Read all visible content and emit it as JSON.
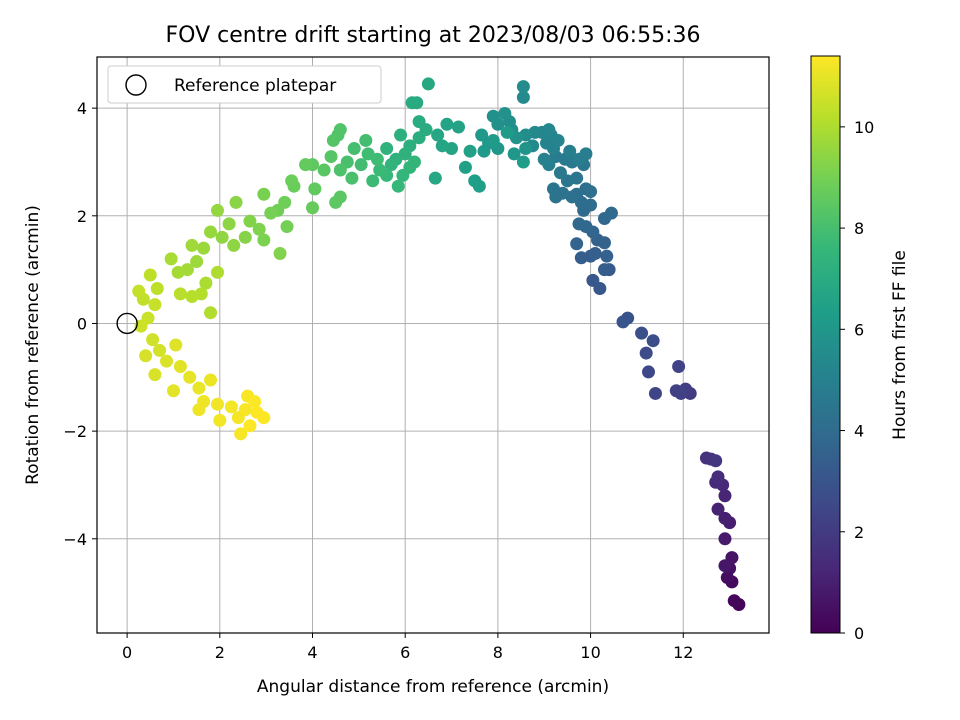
{
  "chart_data": {
    "type": "scatter",
    "title": "FOV centre drift starting at 2023/08/03 06:55:36",
    "xlabel": "Angular distance from reference (arcmin)",
    "ylabel": "Rotation from reference (arcmin)",
    "xlim": [
      -0.65,
      13.85
    ],
    "ylim": [
      -5.75,
      4.95
    ],
    "xticks": [
      0,
      2,
      4,
      6,
      8,
      10,
      12
    ],
    "yticks": [
      -4,
      -2,
      0,
      2,
      4
    ],
    "grid": true,
    "legend": {
      "placement": "top-left",
      "entries": [
        "Reference platepar"
      ]
    },
    "reference_point": {
      "x": 0,
      "y": 0,
      "label": "Reference platepar"
    },
    "colorbar": {
      "label": "Hours from first FF file",
      "colormap": "viridis",
      "range": [
        0,
        11.4
      ],
      "ticks": [
        0,
        2,
        4,
        6,
        8,
        10
      ]
    },
    "marker_color_key": [
      "#440154",
      "#482878",
      "#3e4989",
      "#31688e",
      "#26828e",
      "#1f9e89",
      "#35b779",
      "#6ece58",
      "#b5de2b",
      "#fde725"
    ],
    "series": [
      {
        "points": [
          {
            "x": 13.2,
            "y": -5.22,
            "h": 0.1
          },
          {
            "x": 13.1,
            "y": -5.15,
            "h": 0.2
          },
          {
            "x": 13.05,
            "y": -4.8,
            "h": 0.3
          },
          {
            "x": 12.95,
            "y": -4.72,
            "h": 0.4
          },
          {
            "x": 13.0,
            "y": -4.55,
            "h": 0.5
          },
          {
            "x": 13.05,
            "y": -4.35,
            "h": 0.6
          },
          {
            "x": 12.9,
            "y": -4.5,
            "h": 0.7
          },
          {
            "x": 12.9,
            "y": -4.0,
            "h": 0.8
          },
          {
            "x": 13.0,
            "y": -3.7,
            "h": 0.9
          },
          {
            "x": 12.9,
            "y": -3.62,
            "h": 1.0
          },
          {
            "x": 12.75,
            "y": -3.45,
            "h": 1.1
          },
          {
            "x": 12.9,
            "y": -3.2,
            "h": 1.2
          },
          {
            "x": 12.85,
            "y": -3.0,
            "h": 1.3
          },
          {
            "x": 12.7,
            "y": -2.95,
            "h": 1.4
          },
          {
            "x": 12.75,
            "y": -2.85,
            "h": 1.5
          },
          {
            "x": 12.5,
            "y": -2.5,
            "h": 1.6
          },
          {
            "x": 12.6,
            "y": -2.52,
            "h": 1.7
          },
          {
            "x": 12.7,
            "y": -2.55,
            "h": 1.8
          },
          {
            "x": 12.15,
            "y": -1.3,
            "h": 2.0
          },
          {
            "x": 12.05,
            "y": -1.22,
            "h": 2.1
          },
          {
            "x": 11.95,
            "y": -1.3,
            "h": 2.2
          },
          {
            "x": 11.85,
            "y": -1.25,
            "h": 2.25
          },
          {
            "x": 11.9,
            "y": -0.8,
            "h": 2.3
          },
          {
            "x": 11.4,
            "y": -1.3,
            "h": 2.4
          },
          {
            "x": 11.25,
            "y": -0.9,
            "h": 2.5
          },
          {
            "x": 11.2,
            "y": -0.55,
            "h": 2.6
          },
          {
            "x": 11.35,
            "y": -0.32,
            "h": 2.7
          },
          {
            "x": 11.1,
            "y": -0.18,
            "h": 2.8
          },
          {
            "x": 10.8,
            "y": 0.1,
            "h": 2.9
          },
          {
            "x": 10.7,
            "y": 0.03,
            "h": 3.0
          },
          {
            "x": 10.2,
            "y": 0.65,
            "h": 3.1
          },
          {
            "x": 10.05,
            "y": 0.8,
            "h": 3.15
          },
          {
            "x": 10.4,
            "y": 1.0,
            "h": 3.2
          },
          {
            "x": 10.3,
            "y": 1.0,
            "h": 3.3
          },
          {
            "x": 10.0,
            "y": 1.25,
            "h": 3.35
          },
          {
            "x": 9.8,
            "y": 1.22,
            "h": 3.4
          },
          {
            "x": 10.1,
            "y": 1.3,
            "h": 3.45
          },
          {
            "x": 10.35,
            "y": 1.25,
            "h": 3.5
          },
          {
            "x": 10.3,
            "y": 1.5,
            "h": 3.55
          },
          {
            "x": 10.15,
            "y": 1.55,
            "h": 3.6
          },
          {
            "x": 9.7,
            "y": 1.48,
            "h": 3.65
          },
          {
            "x": 10.05,
            "y": 1.7,
            "h": 3.7
          },
          {
            "x": 9.9,
            "y": 1.8,
            "h": 3.75
          },
          {
            "x": 9.75,
            "y": 1.85,
            "h": 3.8
          },
          {
            "x": 10.3,
            "y": 1.95,
            "h": 3.85
          },
          {
            "x": 10.45,
            "y": 2.05,
            "h": 3.9
          },
          {
            "x": 9.85,
            "y": 2.1,
            "h": 3.95
          },
          {
            "x": 10.0,
            "y": 2.2,
            "h": 4.0
          },
          {
            "x": 9.8,
            "y": 2.25,
            "h": 4.05
          },
          {
            "x": 9.7,
            "y": 2.4,
            "h": 4.1
          },
          {
            "x": 9.9,
            "y": 2.5,
            "h": 4.15
          },
          {
            "x": 10.0,
            "y": 2.45,
            "h": 4.2
          },
          {
            "x": 9.6,
            "y": 2.35,
            "h": 4.25
          },
          {
            "x": 9.4,
            "y": 2.42,
            "h": 4.3
          },
          {
            "x": 9.25,
            "y": 2.35,
            "h": 4.35
          },
          {
            "x": 9.2,
            "y": 2.5,
            "h": 4.4
          },
          {
            "x": 9.5,
            "y": 2.65,
            "h": 4.45
          },
          {
            "x": 9.7,
            "y": 2.7,
            "h": 4.5
          },
          {
            "x": 9.85,
            "y": 2.95,
            "h": 4.55
          },
          {
            "x": 9.6,
            "y": 3.0,
            "h": 4.6
          },
          {
            "x": 9.35,
            "y": 2.8,
            "h": 4.65
          },
          {
            "x": 9.45,
            "y": 3.05,
            "h": 4.7
          },
          {
            "x": 9.25,
            "y": 3.1,
            "h": 4.75
          },
          {
            "x": 9.9,
            "y": 3.15,
            "h": 4.8
          },
          {
            "x": 9.75,
            "y": 3.05,
            "h": 4.85
          },
          {
            "x": 9.55,
            "y": 3.2,
            "h": 4.9
          },
          {
            "x": 9.1,
            "y": 2.95,
            "h": 4.95
          },
          {
            "x": 9.0,
            "y": 3.05,
            "h": 5.0
          },
          {
            "x": 9.2,
            "y": 3.25,
            "h": 5.05
          },
          {
            "x": 9.05,
            "y": 3.35,
            "h": 5.1
          },
          {
            "x": 9.3,
            "y": 3.4,
            "h": 5.15
          },
          {
            "x": 9.15,
            "y": 3.5,
            "h": 5.2
          },
          {
            "x": 8.95,
            "y": 3.55,
            "h": 5.25
          },
          {
            "x": 9.1,
            "y": 3.6,
            "h": 5.3
          },
          {
            "x": 8.8,
            "y": 3.55,
            "h": 5.35
          },
          {
            "x": 8.75,
            "y": 3.3,
            "h": 5.4
          },
          {
            "x": 8.55,
            "y": 4.2,
            "h": 5.45
          },
          {
            "x": 8.55,
            "y": 4.4,
            "h": 5.5
          },
          {
            "x": 8.6,
            "y": 3.5,
            "h": 5.55
          },
          {
            "x": 8.3,
            "y": 3.6,
            "h": 5.6
          },
          {
            "x": 8.25,
            "y": 3.75,
            "h": 5.65
          },
          {
            "x": 8.0,
            "y": 3.7,
            "h": 5.7
          },
          {
            "x": 7.9,
            "y": 3.85,
            "h": 5.75
          },
          {
            "x": 8.15,
            "y": 3.9,
            "h": 5.8
          },
          {
            "x": 8.4,
            "y": 3.45,
            "h": 5.85
          },
          {
            "x": 8.6,
            "y": 3.25,
            "h": 5.9
          },
          {
            "x": 8.35,
            "y": 3.15,
            "h": 5.95
          },
          {
            "x": 8.0,
            "y": 3.25,
            "h": 6.0
          },
          {
            "x": 7.8,
            "y": 3.35,
            "h": 6.05
          },
          {
            "x": 7.65,
            "y": 3.5,
            "h": 6.1
          },
          {
            "x": 7.7,
            "y": 3.2,
            "h": 6.15
          },
          {
            "x": 7.9,
            "y": 3.4,
            "h": 6.2
          },
          {
            "x": 8.2,
            "y": 3.55,
            "h": 6.25
          },
          {
            "x": 8.55,
            "y": 3.0,
            "h": 6.3
          },
          {
            "x": 7.5,
            "y": 2.65,
            "h": 6.35
          },
          {
            "x": 7.6,
            "y": 2.55,
            "h": 6.4
          },
          {
            "x": 7.3,
            "y": 2.9,
            "h": 6.45
          },
          {
            "x": 7.4,
            "y": 3.2,
            "h": 6.5
          },
          {
            "x": 7.15,
            "y": 3.65,
            "h": 6.55
          },
          {
            "x": 6.9,
            "y": 3.7,
            "h": 6.6
          },
          {
            "x": 7.0,
            "y": 3.25,
            "h": 6.65
          },
          {
            "x": 6.8,
            "y": 3.3,
            "h": 6.7
          },
          {
            "x": 6.7,
            "y": 3.5,
            "h": 6.75
          },
          {
            "x": 6.65,
            "y": 2.7,
            "h": 6.8
          },
          {
            "x": 6.5,
            "y": 4.45,
            "h": 6.85
          },
          {
            "x": 6.25,
            "y": 4.1,
            "h": 6.9
          },
          {
            "x": 6.15,
            "y": 4.1,
            "h": 6.95
          },
          {
            "x": 6.3,
            "y": 3.75,
            "h": 7.0
          },
          {
            "x": 6.45,
            "y": 3.6,
            "h": 7.05
          },
          {
            "x": 6.3,
            "y": 3.45,
            "h": 7.1
          },
          {
            "x": 6.1,
            "y": 3.3,
            "h": 7.15
          },
          {
            "x": 5.9,
            "y": 3.5,
            "h": 7.2
          },
          {
            "x": 6.0,
            "y": 3.15,
            "h": 7.25
          },
          {
            "x": 5.8,
            "y": 3.05,
            "h": 7.3
          },
          {
            "x": 5.6,
            "y": 3.25,
            "h": 7.35
          },
          {
            "x": 5.7,
            "y": 2.95,
            "h": 7.4
          },
          {
            "x": 6.1,
            "y": 2.9,
            "h": 7.45
          },
          {
            "x": 6.2,
            "y": 3.0,
            "h": 7.5
          },
          {
            "x": 5.95,
            "y": 2.75,
            "h": 7.55
          },
          {
            "x": 5.85,
            "y": 2.55,
            "h": 7.6
          },
          {
            "x": 5.6,
            "y": 2.75,
            "h": 7.65
          },
          {
            "x": 5.45,
            "y": 2.85,
            "h": 7.7
          },
          {
            "x": 5.3,
            "y": 2.65,
            "h": 7.75
          },
          {
            "x": 5.4,
            "y": 3.05,
            "h": 7.8
          },
          {
            "x": 5.2,
            "y": 3.15,
            "h": 7.85
          },
          {
            "x": 5.05,
            "y": 2.95,
            "h": 7.9
          },
          {
            "x": 5.15,
            "y": 3.4,
            "h": 7.95
          },
          {
            "x": 4.9,
            "y": 3.25,
            "h": 8.0
          },
          {
            "x": 4.75,
            "y": 3.0,
            "h": 8.05
          },
          {
            "x": 4.85,
            "y": 2.7,
            "h": 8.1
          },
          {
            "x": 4.6,
            "y": 2.85,
            "h": 8.15
          },
          {
            "x": 4.55,
            "y": 3.5,
            "h": 8.2
          },
          {
            "x": 4.6,
            "y": 3.6,
            "h": 8.25
          },
          {
            "x": 4.45,
            "y": 3.4,
            "h": 8.3
          },
          {
            "x": 4.4,
            "y": 3.1,
            "h": 8.35
          },
          {
            "x": 4.25,
            "y": 2.85,
            "h": 8.4
          },
          {
            "x": 4.6,
            "y": 2.35,
            "h": 8.45
          },
          {
            "x": 4.5,
            "y": 2.25,
            "h": 8.5
          },
          {
            "x": 4.0,
            "y": 2.95,
            "h": 8.55
          },
          {
            "x": 4.05,
            "y": 2.5,
            "h": 8.6
          },
          {
            "x": 3.85,
            "y": 2.95,
            "h": 8.65
          },
          {
            "x": 4.0,
            "y": 2.15,
            "h": 8.7
          },
          {
            "x": 3.6,
            "y": 2.55,
            "h": 8.75
          },
          {
            "x": 3.55,
            "y": 2.65,
            "h": 8.8
          },
          {
            "x": 3.4,
            "y": 2.25,
            "h": 8.85
          },
          {
            "x": 3.25,
            "y": 2.1,
            "h": 8.9
          },
          {
            "x": 3.45,
            "y": 1.8,
            "h": 8.95
          },
          {
            "x": 3.1,
            "y": 2.05,
            "h": 9.0
          },
          {
            "x": 2.95,
            "y": 2.4,
            "h": 9.05
          },
          {
            "x": 2.95,
            "y": 1.55,
            "h": 9.1
          },
          {
            "x": 2.85,
            "y": 1.75,
            "h": 9.15
          },
          {
            "x": 3.3,
            "y": 1.3,
            "h": 9.2
          },
          {
            "x": 2.65,
            "y": 1.9,
            "h": 9.25
          },
          {
            "x": 2.55,
            "y": 1.6,
            "h": 9.3
          },
          {
            "x": 2.35,
            "y": 2.25,
            "h": 9.35
          },
          {
            "x": 2.2,
            "y": 1.85,
            "h": 9.4
          },
          {
            "x": 2.3,
            "y": 1.45,
            "h": 9.45
          },
          {
            "x": 2.05,
            "y": 1.6,
            "h": 9.5
          },
          {
            "x": 1.95,
            "y": 2.1,
            "h": 9.55
          },
          {
            "x": 1.8,
            "y": 1.7,
            "h": 9.6
          },
          {
            "x": 1.65,
            "y": 1.4,
            "h": 9.65
          },
          {
            "x": 1.5,
            "y": 1.15,
            "h": 9.7
          },
          {
            "x": 1.4,
            "y": 1.45,
            "h": 9.75
          },
          {
            "x": 1.3,
            "y": 1.0,
            "h": 9.8
          },
          {
            "x": 1.1,
            "y": 0.95,
            "h": 9.85
          },
          {
            "x": 0.95,
            "y": 1.2,
            "h": 9.9
          },
          {
            "x": 1.7,
            "y": 0.75,
            "h": 9.95
          },
          {
            "x": 1.95,
            "y": 0.95,
            "h": 10.0
          },
          {
            "x": 1.8,
            "y": 0.2,
            "h": 10.05
          },
          {
            "x": 1.6,
            "y": 0.55,
            "h": 10.1
          },
          {
            "x": 1.4,
            "y": 0.5,
            "h": 10.15
          },
          {
            "x": 1.15,
            "y": 0.55,
            "h": 10.2
          },
          {
            "x": 0.65,
            "y": 0.65,
            "h": 10.25
          },
          {
            "x": 0.5,
            "y": 0.9,
            "h": 10.3
          },
          {
            "x": 0.35,
            "y": 0.45,
            "h": 10.35
          },
          {
            "x": 0.25,
            "y": 0.6,
            "h": 10.4
          },
          {
            "x": 0.6,
            "y": 0.35,
            "h": 10.45
          },
          {
            "x": 0.45,
            "y": 0.1,
            "h": 10.5
          },
          {
            "x": 0.3,
            "y": -0.05,
            "h": 10.55
          },
          {
            "x": 0.55,
            "y": -0.3,
            "h": 10.6
          },
          {
            "x": 0.7,
            "y": -0.5,
            "h": 10.65
          },
          {
            "x": 0.4,
            "y": -0.6,
            "h": 10.7
          },
          {
            "x": 0.6,
            "y": -0.95,
            "h": 10.75
          },
          {
            "x": 0.85,
            "y": -0.7,
            "h": 10.8
          },
          {
            "x": 1.05,
            "y": -0.4,
            "h": 10.85
          },
          {
            "x": 1.15,
            "y": -0.8,
            "h": 10.9
          },
          {
            "x": 1.0,
            "y": -1.25,
            "h": 10.95
          },
          {
            "x": 1.35,
            "y": -1.0,
            "h": 11.0
          },
          {
            "x": 1.55,
            "y": -1.2,
            "h": 11.05
          },
          {
            "x": 1.8,
            "y": -1.05,
            "h": 11.1
          },
          {
            "x": 1.65,
            "y": -1.45,
            "h": 11.12
          },
          {
            "x": 1.55,
            "y": -1.6,
            "h": 11.15
          },
          {
            "x": 1.95,
            "y": -1.5,
            "h": 11.18
          },
          {
            "x": 2.0,
            "y": -1.8,
            "h": 11.2
          },
          {
            "x": 2.25,
            "y": -1.55,
            "h": 11.22
          },
          {
            "x": 2.4,
            "y": -1.75,
            "h": 11.25
          },
          {
            "x": 2.45,
            "y": -2.05,
            "h": 11.28
          },
          {
            "x": 2.55,
            "y": -1.6,
            "h": 11.3
          },
          {
            "x": 2.6,
            "y": -1.35,
            "h": 11.32
          },
          {
            "x": 2.75,
            "y": -1.45,
            "h": 11.34
          },
          {
            "x": 2.65,
            "y": -1.9,
            "h": 11.36
          },
          {
            "x": 2.95,
            "y": -1.75,
            "h": 11.38
          },
          {
            "x": 2.8,
            "y": -1.65,
            "h": 11.4
          }
        ]
      }
    ]
  }
}
